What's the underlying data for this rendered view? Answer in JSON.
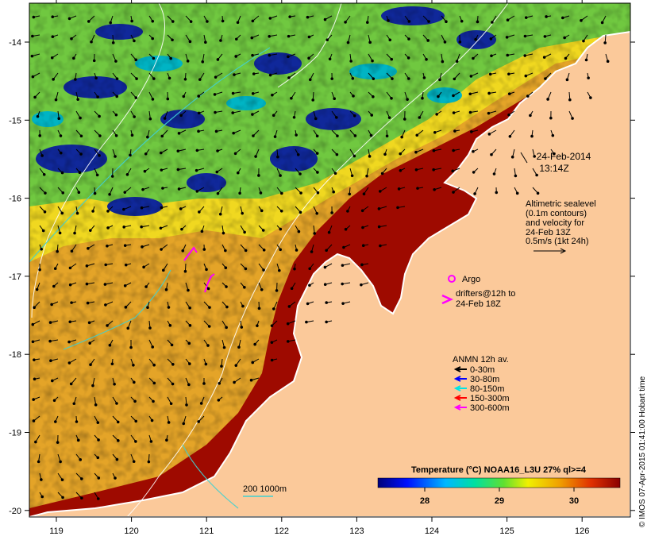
{
  "map": {
    "date_line1": "24-Feb-2014",
    "date_line2": "13:14Z",
    "altimetry_lines": [
      "Altimetric sealevel",
      "(0.1m contours)",
      "and velocity for",
      "24-Feb 13Z",
      "0.5m/s (1kt 24h)"
    ],
    "argo_label": "Argo",
    "drifters_line1": "drifters@12h to",
    "drifters_line2": "24-Feb 18Z",
    "anmn_title": "ANMN 12h av.",
    "anmn_legend": [
      {
        "label": "0-30m",
        "color": "#000000"
      },
      {
        "label": "30-80m",
        "color": "#0000ff"
      },
      {
        "label": "80-150m",
        "color": "#00e5e5"
      },
      {
        "label": "150-300m",
        "color": "#ff0000"
      },
      {
        "label": "300-600m",
        "color": "#ff00ff"
      }
    ],
    "depth_legend": "200  1000m",
    "colorbar_title": "Temperature (°C) NOAA16_L3U 27% ql>=4",
    "colorbar_ticks": [
      "28",
      "29",
      "30"
    ],
    "copyright": "© IMOS 07-Apr-2015 01:41:00 Hobart time",
    "x_ticks": [
      "119",
      "120",
      "121",
      "122",
      "123",
      "124",
      "125",
      "126"
    ],
    "y_ticks": [
      "-14",
      "-15",
      "-16",
      "-17",
      "-18",
      "-19",
      "-20"
    ],
    "colors": {
      "land": "#fbc99a",
      "hot": "#9e0a00",
      "warm": "#e8a020",
      "yellow": "#f0e020",
      "green": "#60c840",
      "cyan": "#00b0c0",
      "blue": "#10289a"
    }
  }
}
